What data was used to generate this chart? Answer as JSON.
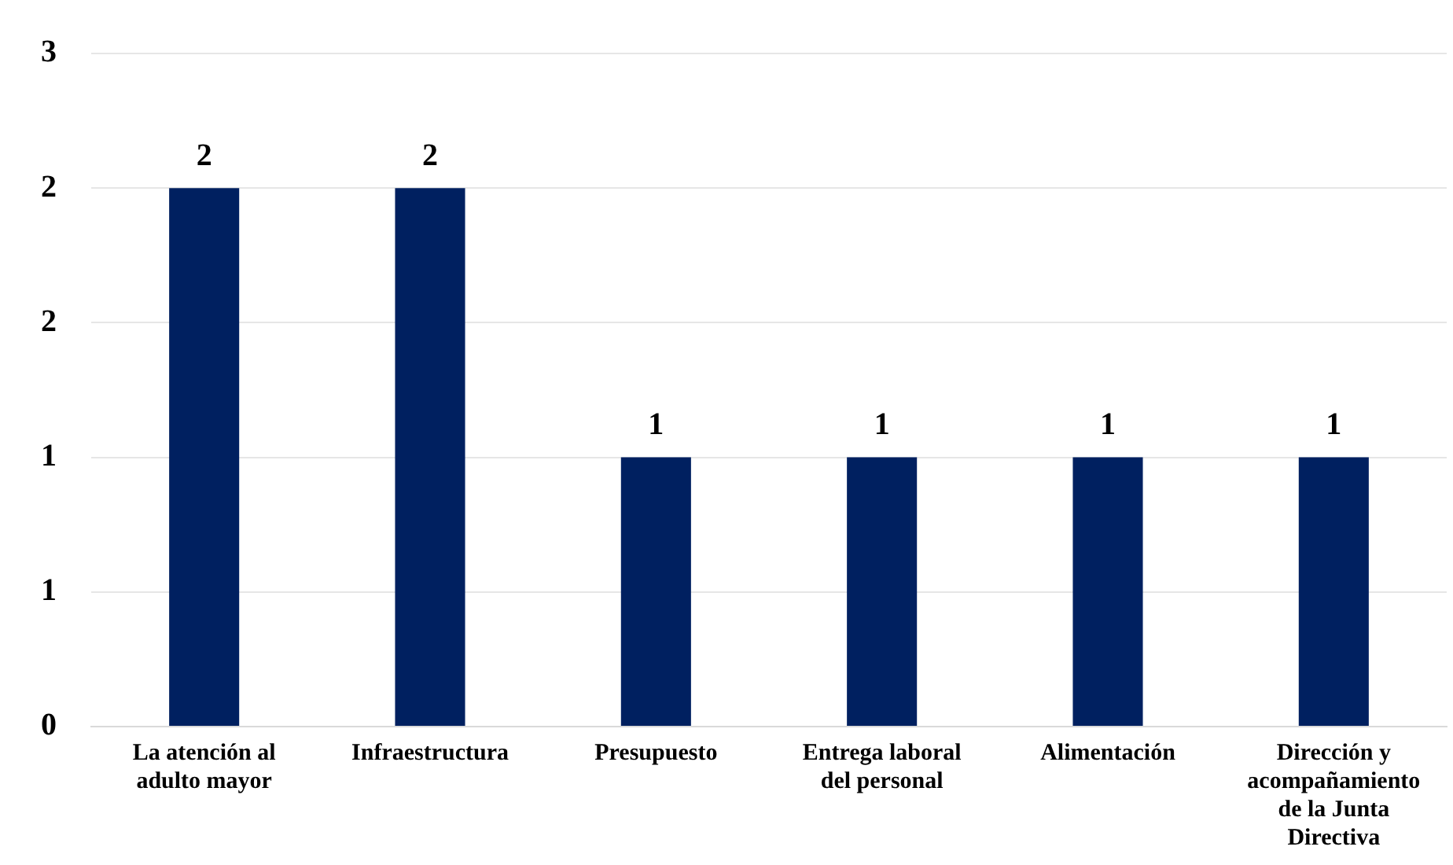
{
  "chart_data": {
    "type": "bar",
    "categories": [
      "La atención al adulto mayor",
      "Infraestructura",
      "Presupuesto",
      "Entrega laboral del personal",
      "Alimentación",
      "Dirección y acompañamiento de la Junta Directiva"
    ],
    "values": [
      2,
      2,
      1,
      1,
      1,
      1
    ],
    "color": "#002060",
    "ylim": [
      0,
      2.5
    ],
    "yticks": [
      {
        "value": 0,
        "label": "0"
      },
      {
        "value": 0.5,
        "label": "1"
      },
      {
        "value": 1,
        "label": "1"
      },
      {
        "value": 1.5,
        "label": "2"
      },
      {
        "value": 2,
        "label": "2"
      },
      {
        "value": 2.5,
        "label": "3"
      }
    ],
    "grid": "y",
    "data_labels": true,
    "legend": false
  }
}
